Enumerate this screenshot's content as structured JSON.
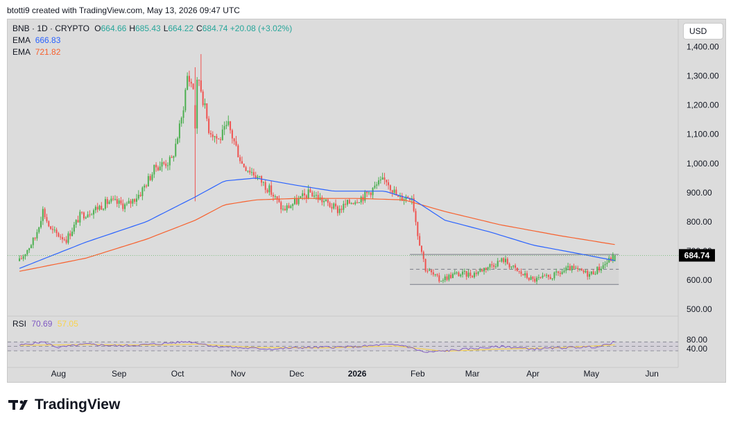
{
  "header": {
    "credit": "btotti9 created with TradingView.com, May 13, 2026 09:47 UTC"
  },
  "legend": {
    "symbol": "BNB · 1D · CRYPTO",
    "ohlc": [
      {
        "k": "O",
        "v": "664.66"
      },
      {
        "k": "H",
        "v": "685.43"
      },
      {
        "k": "L",
        "v": "664.22"
      },
      {
        "k": "C",
        "v": "684.74"
      }
    ],
    "change": "+20.08 (+3.02%)",
    "ema1": {
      "label": "EMA",
      "value": "666.83"
    },
    "ema2": {
      "label": "EMA",
      "value": "721.82"
    },
    "rsi": {
      "label": "RSI",
      "value": "70.69",
      "ma": "57.05"
    }
  },
  "currency_button": "USD",
  "brand": "TradingView",
  "colors": {
    "up": "#26a69a",
    "upGreen": "#4caf50",
    "down": "#ef5350",
    "ema1": "#2962ff",
    "ema2": "#f7612e",
    "rsi": "#7e57c2",
    "rsiMa": "#f9d34a"
  },
  "chart_data": [
    {
      "type": "candlestick",
      "title": "BNB · 1D · CRYPTO",
      "x_ticks": [
        "Aug",
        "Sep",
        "Oct",
        "Nov",
        "Dec",
        "2026",
        "Feb",
        "Mar",
        "Apr",
        "May",
        "Jun"
      ],
      "y_ticks": [
        "1,400.00",
        "1,300.00",
        "1,200.00",
        "1,100.00",
        "1,000.00",
        "900.00",
        "800.00",
        "700.00",
        "600.00",
        "500.00"
      ],
      "ylim": [
        480,
        1440
      ],
      "last_price": "684.74",
      "price_path": [
        [
          "2025-07-12",
          665
        ],
        [
          "2025-07-20",
          745
        ],
        [
          "2025-07-24",
          840
        ],
        [
          "2025-07-28",
          770
        ],
        [
          "2025-08-05",
          740
        ],
        [
          "2025-08-12",
          820
        ],
        [
          "2025-08-20",
          845
        ],
        [
          "2025-08-27",
          870
        ],
        [
          "2025-09-05",
          855
        ],
        [
          "2025-09-12",
          900
        ],
        [
          "2025-09-20",
          990
        ],
        [
          "2025-09-28",
          1010
        ],
        [
          "2025-10-03",
          1150
        ],
        [
          "2025-10-06",
          1300
        ],
        [
          "2025-10-10",
          1250
        ],
        [
          "2025-10-12",
          1290
        ],
        [
          "2025-10-17",
          1120
        ],
        [
          "2025-10-22",
          1080
        ],
        [
          "2025-10-27",
          1130
        ],
        [
          "2025-11-03",
          1000
        ],
        [
          "2025-11-10",
          960
        ],
        [
          "2025-11-17",
          910
        ],
        [
          "2025-11-24",
          840
        ],
        [
          "2025-12-01",
          870
        ],
        [
          "2025-12-08",
          900
        ],
        [
          "2025-12-15",
          870
        ],
        [
          "2025-12-22",
          840
        ],
        [
          "2025-12-29",
          870
        ],
        [
          "2026-01-05",
          890
        ],
        [
          "2026-01-12",
          930
        ],
        [
          "2026-01-16",
          945
        ],
        [
          "2026-01-22",
          880
        ],
        [
          "2026-01-29",
          890
        ],
        [
          "2026-02-01",
          760
        ],
        [
          "2026-02-05",
          640
        ],
        [
          "2026-02-12",
          600
        ],
        [
          "2026-02-20",
          620
        ],
        [
          "2026-03-01",
          620
        ],
        [
          "2026-03-10",
          650
        ],
        [
          "2026-03-17",
          670
        ],
        [
          "2026-03-24",
          630
        ],
        [
          "2026-04-01",
          600
        ],
        [
          "2026-04-10",
          610
        ],
        [
          "2026-04-20",
          640
        ],
        [
          "2026-04-30",
          620
        ],
        [
          "2026-05-06",
          645
        ],
        [
          "2026-05-13",
          684.74
        ]
      ],
      "ema_fast": [
        [
          "2025-07-12",
          640
        ],
        [
          "2025-08-15",
          730
        ],
        [
          "2025-09-15",
          800
        ],
        [
          "2025-10-10",
          885
        ],
        [
          "2025-10-25",
          940
        ],
        [
          "2025-11-10",
          950
        ],
        [
          "2025-12-01",
          925
        ],
        [
          "2025-12-20",
          905
        ],
        [
          "2026-01-15",
          905
        ],
        [
          "2026-01-30",
          875
        ],
        [
          "2026-02-15",
          805
        ],
        [
          "2026-03-10",
          765
        ],
        [
          "2026-04-01",
          720
        ],
        [
          "2026-04-25",
          690
        ],
        [
          "2026-05-13",
          666.83
        ]
      ],
      "ema_slow": [
        [
          "2025-07-12",
          630
        ],
        [
          "2025-08-15",
          675
        ],
        [
          "2025-09-15",
          740
        ],
        [
          "2025-10-10",
          805
        ],
        [
          "2025-10-25",
          858
        ],
        [
          "2025-11-10",
          875
        ],
        [
          "2025-12-01",
          880
        ],
        [
          "2026-01-01",
          880
        ],
        [
          "2026-01-25",
          875
        ],
        [
          "2026-02-15",
          835
        ],
        [
          "2026-03-15",
          790
        ],
        [
          "2026-04-15",
          752
        ],
        [
          "2026-05-13",
          721.82
        ]
      ],
      "range_box": {
        "top": 688,
        "mid": 637,
        "bottom": 585,
        "from": "2026-01-28",
        "to": "2026-05-15"
      }
    },
    {
      "type": "line",
      "title": "RSI",
      "y_ticks": [
        "80.00",
        "40.00"
      ],
      "ylim": [
        0,
        100
      ],
      "levels": [
        70,
        50,
        30
      ],
      "rsi": [
        [
          "2025-07-12",
          55
        ],
        [
          "2025-07-24",
          70
        ],
        [
          "2025-08-01",
          45
        ],
        [
          "2025-08-15",
          60
        ],
        [
          "2025-09-01",
          52
        ],
        [
          "2025-09-20",
          60
        ],
        [
          "2025-10-06",
          72
        ],
        [
          "2025-10-12",
          65
        ],
        [
          "2025-10-20",
          50
        ],
        [
          "2025-11-05",
          42
        ],
        [
          "2025-11-20",
          38
        ],
        [
          "2025-12-01",
          44
        ],
        [
          "2025-12-15",
          46
        ],
        [
          "2026-01-01",
          48
        ],
        [
          "2026-01-15",
          58
        ],
        [
          "2026-01-25",
          54
        ],
        [
          "2026-02-05",
          22
        ],
        [
          "2026-02-15",
          30
        ],
        [
          "2026-03-01",
          40
        ],
        [
          "2026-03-17",
          50
        ],
        [
          "2026-04-01",
          38
        ],
        [
          "2026-04-20",
          45
        ],
        [
          "2026-05-05",
          48
        ],
        [
          "2026-05-13",
          70.69
        ]
      ],
      "rsi_ma": [
        [
          "2025-07-12",
          55
        ],
        [
          "2025-08-15",
          58
        ],
        [
          "2025-09-20",
          56
        ],
        [
          "2025-10-12",
          60
        ],
        [
          "2025-11-10",
          45
        ],
        [
          "2025-12-15",
          43
        ],
        [
          "2026-01-20",
          52
        ],
        [
          "2026-02-15",
          28
        ],
        [
          "2026-03-15",
          38
        ],
        [
          "2026-04-15",
          44
        ],
        [
          "2026-05-13",
          57.05
        ]
      ]
    }
  ]
}
